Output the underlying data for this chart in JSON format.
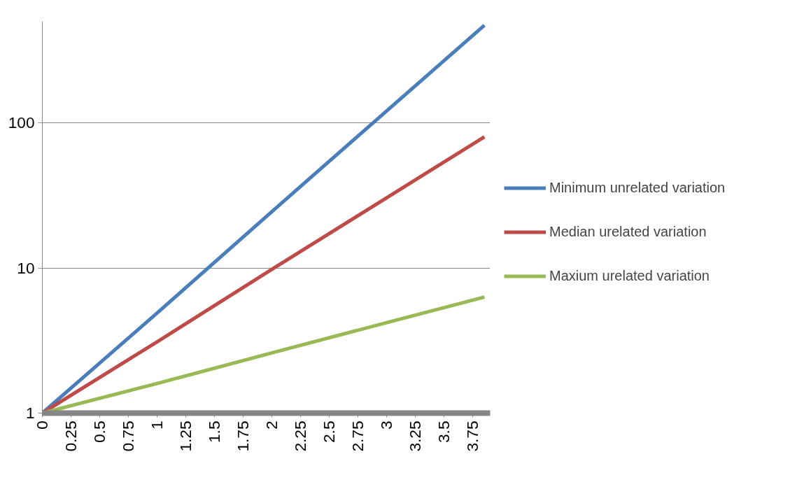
{
  "chart_data": {
    "type": "line",
    "log": "y",
    "grid": "y",
    "legend": "right",
    "line_style": "solid",
    "marker": "none",
    "x": [
      0,
      1,
      2,
      3,
      3.85
    ],
    "xlim": [
      0,
      3.9
    ],
    "xticks": [
      0,
      0.25,
      0.5,
      0.75,
      1,
      1.25,
      1.5,
      1.75,
      2,
      2.25,
      2.5,
      2.75,
      3,
      3.25,
      3.5,
      3.75
    ],
    "ylim": [
      1,
      500
    ],
    "yticks": [
      1,
      10,
      100
    ],
    "series": [
      {
        "name": "Minimum unrelated variation",
        "color": "#4a7ebb",
        "values": [
          1,
          4.9,
          24.5,
          121,
          470
        ]
      },
      {
        "name": "Median urelated variation",
        "color": "#be4b48",
        "values": [
          1,
          3.1,
          9.8,
          30.5,
          80
        ]
      },
      {
        "name": "Maxium urelated variation",
        "color": "#98b954",
        "values": [
          1,
          1.6,
          2.6,
          4.2,
          6.3
        ]
      }
    ]
  }
}
